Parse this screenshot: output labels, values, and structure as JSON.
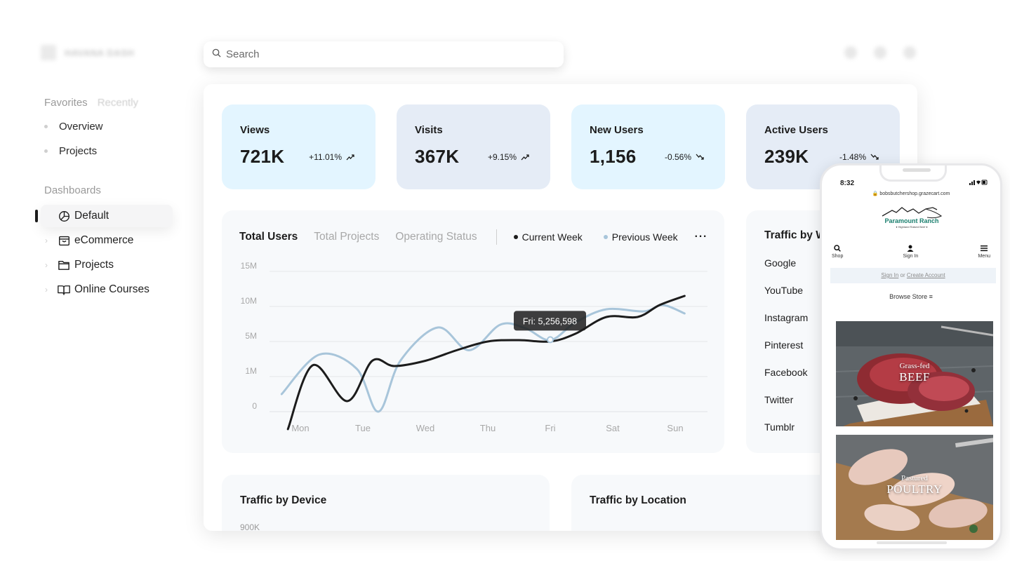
{
  "sidebar": {
    "brand": "HAVANA DASH",
    "tabs": [
      "Favorites",
      "Recently"
    ],
    "favorites": [
      "Overview",
      "Projects"
    ],
    "section_label": "Dashboards",
    "dashboards": [
      {
        "label": "Default",
        "icon": "pie-chart-icon",
        "active": true
      },
      {
        "label": "eCommerce",
        "icon": "shopping-bag-icon",
        "active": false
      },
      {
        "label": "Projects",
        "icon": "folder-icon",
        "active": false
      },
      {
        "label": "Online Courses",
        "icon": "book-open-icon",
        "active": false
      }
    ]
  },
  "search": {
    "placeholder": "Search"
  },
  "stats": [
    {
      "label": "Views",
      "value": "721K",
      "delta": "+11.01%",
      "trend": "up"
    },
    {
      "label": "Visits",
      "value": "367K",
      "delta": "+9.15%",
      "trend": "up"
    },
    {
      "label": "New Users",
      "value": "1,156",
      "delta": "-0.56%",
      "trend": "down"
    },
    {
      "label": "Active Users",
      "value": "239K",
      "delta": "-1.48%",
      "trend": "down"
    }
  ],
  "chart": {
    "tabs": [
      "Total Users",
      "Total Projects",
      "Operating Status"
    ],
    "legend": [
      "Current Week",
      "Previous Week"
    ],
    "more": "···",
    "tooltip": "Fri: 5,256,598"
  },
  "chart_data": {
    "type": "line",
    "x": [
      "Mon",
      "Tue",
      "Wed",
      "Thu",
      "Fri",
      "Sat",
      "Sun"
    ],
    "yticks": [
      {
        "label": "15M",
        "value": 15
      },
      {
        "label": "10M",
        "value": 10
      },
      {
        "label": "5M",
        "value": 5
      },
      {
        "label": "1M",
        "value": 1
      },
      {
        "label": "0",
        "value": 0
      }
    ],
    "colors": {
      "current": "#1c1c1c",
      "previous": "#a8c5da",
      "grid": "#e4e6ea"
    },
    "series": [
      {
        "name": "Current Week",
        "points": [
          [
            -0.2,
            -0.5
          ],
          [
            0.2,
            2.3
          ],
          [
            0.75,
            0.3
          ],
          [
            1.15,
            2.8
          ],
          [
            1.5,
            2.2
          ],
          [
            2.0,
            2.8
          ],
          [
            2.5,
            4.0
          ],
          [
            3.0,
            5.0
          ],
          [
            3.5,
            5.2
          ],
          [
            4.0,
            5.0
          ],
          [
            4.4,
            6.1
          ],
          [
            4.9,
            8.5
          ],
          [
            5.4,
            8.5
          ],
          [
            5.75,
            10.2
          ],
          [
            6.15,
            11.5
          ]
        ]
      },
      {
        "name": "Previous Week",
        "points": [
          [
            -0.3,
            0.5
          ],
          [
            0.3,
            3.5
          ],
          [
            0.9,
            1.9
          ],
          [
            1.25,
            0.0
          ],
          [
            1.6,
            2.8
          ],
          [
            2.2,
            7.0
          ],
          [
            2.7,
            4.0
          ],
          [
            3.2,
            7.4
          ],
          [
            3.6,
            6.9
          ],
          [
            4.0,
            5.2
          ],
          [
            4.4,
            7.7
          ],
          [
            4.9,
            9.6
          ],
          [
            5.5,
            9.3
          ],
          [
            5.8,
            10.2
          ],
          [
            6.15,
            9.0
          ]
        ]
      }
    ],
    "tooltip_point": {
      "x": "Fri",
      "series": "Previous Week",
      "value": 5256598
    }
  },
  "traffic_website": {
    "title": "Traffic by Website",
    "items": [
      "Google",
      "YouTube",
      "Instagram",
      "Pinterest",
      "Facebook",
      "Twitter",
      "Tumblr"
    ]
  },
  "traffic_device": {
    "title": "Traffic by Device",
    "axis_top": "900K"
  },
  "traffic_location": {
    "title": "Traffic by Location"
  },
  "phone": {
    "time": "8:32",
    "url": "bobsbutchershop.grazecart.com",
    "logo_name": "Paramount Ranch",
    "logo_tagline": "♦ Highland Raised Beef ♦",
    "nav": [
      {
        "label": "Shop",
        "icon": "search-icon"
      },
      {
        "label": "Sign In",
        "icon": "user-icon"
      },
      {
        "label": "Menu",
        "icon": "menu-icon"
      }
    ],
    "signin": "Sign In",
    "or": "or",
    "create_account": "Create Account",
    "browse": "Browse Store ≡",
    "cards": [
      {
        "line1": "Grass-fed",
        "line2": "BEEF"
      },
      {
        "line1": "Pastured",
        "line2": "POULTRY"
      }
    ]
  }
}
